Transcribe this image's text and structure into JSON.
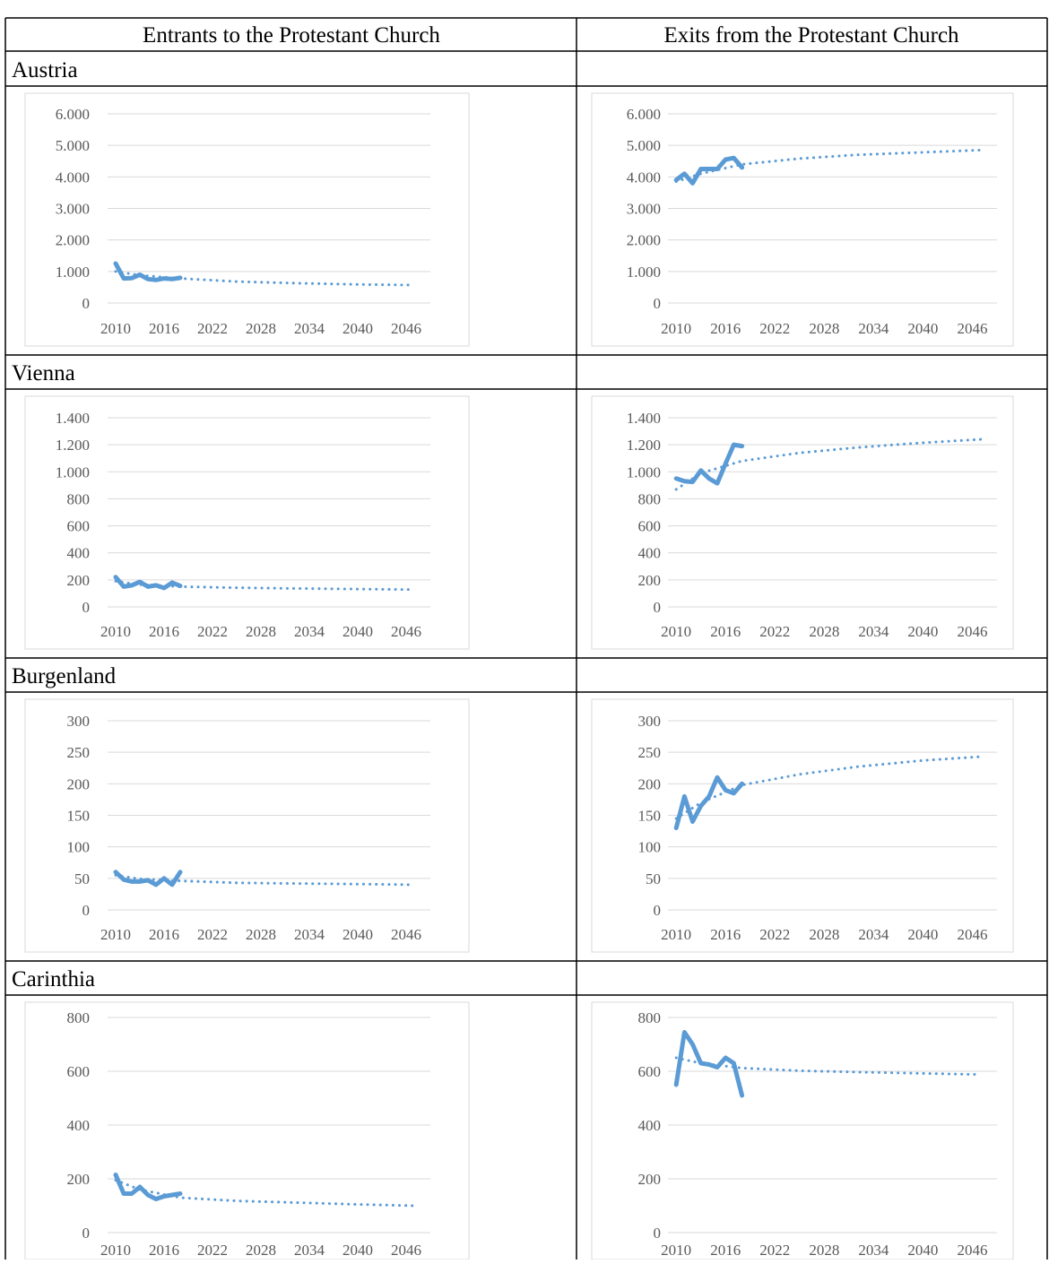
{
  "table": {
    "headers": [
      "Entrants to the Protestant Church",
      "Exits from the Protestant Church"
    ],
    "regions": [
      "Austria",
      "Vienna",
      "Burgenland",
      "Carinthia"
    ]
  },
  "chart_data": [
    {
      "type": "line",
      "xlim": [
        2009,
        2049
      ],
      "xticks": [
        2010,
        2016,
        2022,
        2028,
        2034,
        2040,
        2046
      ],
      "ylim": [
        0,
        6000
      ],
      "yticks": [
        0,
        {
          "value": 1000,
          "label": "1.000"
        },
        {
          "value": 2000,
          "label": "2.000"
        },
        {
          "value": 3000,
          "label": "3.000"
        },
        {
          "value": 4000,
          "label": "4.000"
        },
        {
          "value": 5000,
          "label": "5.000"
        },
        {
          "value": 6000,
          "label": "6.000"
        }
      ],
      "grid": true,
      "series": [
        {
          "color": "#5b9bd5",
          "style": "solid",
          "x": [
            2010,
            2011,
            2012,
            2013,
            2014,
            2015,
            2016,
            2017,
            2018
          ],
          "values": [
            1250,
            780,
            790,
            900,
            760,
            730,
            780,
            760,
            800
          ]
        },
        {
          "color": "#5b9bd5",
          "style": "dotted",
          "x": [
            2010,
            2013,
            2018,
            2025,
            2032,
            2040,
            2047
          ],
          "values": [
            1000,
            880,
            780,
            680,
            630,
            590,
            570
          ]
        }
      ]
    },
    {
      "type": "line",
      "xlim": [
        2009,
        2049
      ],
      "xticks": [
        2010,
        2016,
        2022,
        2028,
        2034,
        2040,
        2046
      ],
      "ylim": [
        0,
        6000
      ],
      "yticks": [
        0,
        {
          "value": 1000,
          "label": "1.000"
        },
        {
          "value": 2000,
          "label": "2.000"
        },
        {
          "value": 3000,
          "label": "3.000"
        },
        {
          "value": 4000,
          "label": "4.000"
        },
        {
          "value": 5000,
          "label": "5.000"
        },
        {
          "value": 6000,
          "label": "6.000"
        }
      ],
      "grid": true,
      "series": [
        {
          "color": "#5b9bd5",
          "style": "solid",
          "x": [
            2010,
            2011,
            2012,
            2013,
            2014,
            2015,
            2016,
            2017,
            2018
          ],
          "values": [
            3900,
            4100,
            3800,
            4250,
            4250,
            4250,
            4550,
            4600,
            4300
          ]
        },
        {
          "color": "#5b9bd5",
          "style": "dotted",
          "x": [
            2010,
            2013,
            2018,
            2025,
            2032,
            2040,
            2047
          ],
          "values": [
            3850,
            4100,
            4400,
            4580,
            4700,
            4780,
            4850
          ]
        }
      ]
    },
    {
      "type": "line",
      "xlim": [
        2009,
        2049
      ],
      "xticks": [
        2010,
        2016,
        2022,
        2028,
        2034,
        2040,
        2046
      ],
      "ylim": [
        0,
        1400
      ],
      "yticks": [
        0,
        200,
        400,
        600,
        800,
        {
          "value": 1000,
          "label": "1.000"
        },
        {
          "value": 1200,
          "label": "1.200"
        },
        {
          "value": 1400,
          "label": "1.400"
        }
      ],
      "grid": true,
      "series": [
        {
          "color": "#5b9bd5",
          "style": "solid",
          "x": [
            2010,
            2011,
            2012,
            2013,
            2014,
            2015,
            2016,
            2017,
            2018
          ],
          "values": [
            220,
            150,
            160,
            185,
            150,
            160,
            140,
            180,
            155
          ]
        },
        {
          "color": "#5b9bd5",
          "style": "dotted",
          "x": [
            2010,
            2013,
            2018,
            2025,
            2032,
            2040,
            2047
          ],
          "values": [
            190,
            165,
            150,
            142,
            137,
            132,
            128
          ]
        }
      ]
    },
    {
      "type": "line",
      "xlim": [
        2009,
        2049
      ],
      "xticks": [
        2010,
        2016,
        2022,
        2028,
        2034,
        2040,
        2046
      ],
      "ylim": [
        0,
        1400
      ],
      "yticks": [
        0,
        200,
        400,
        600,
        800,
        {
          "value": 1000,
          "label": "1.000"
        },
        {
          "value": 1200,
          "label": "1.200"
        },
        {
          "value": 1400,
          "label": "1.400"
        }
      ],
      "grid": true,
      "series": [
        {
          "color": "#5b9bd5",
          "style": "solid",
          "x": [
            2010,
            2011,
            2012,
            2013,
            2014,
            2015,
            2016,
            2017,
            2018
          ],
          "values": [
            950,
            930,
            925,
            1010,
            950,
            915,
            1060,
            1200,
            1190
          ]
        },
        {
          "color": "#5b9bd5",
          "style": "dotted",
          "x": [
            2010,
            2013,
            2018,
            2025,
            2032,
            2040,
            2047
          ],
          "values": [
            870,
            990,
            1080,
            1140,
            1180,
            1215,
            1240
          ]
        }
      ]
    },
    {
      "type": "line",
      "xlim": [
        2009,
        2049
      ],
      "xticks": [
        2010,
        2016,
        2022,
        2028,
        2034,
        2040,
        2046
      ],
      "ylim": [
        0,
        300
      ],
      "yticks": [
        0,
        50,
        100,
        150,
        200,
        250,
        300
      ],
      "grid": true,
      "series": [
        {
          "color": "#5b9bd5",
          "style": "solid",
          "x": [
            2010,
            2011,
            2012,
            2013,
            2014,
            2015,
            2016,
            2017,
            2018
          ],
          "values": [
            60,
            48,
            45,
            45,
            47,
            40,
            50,
            40,
            60
          ]
        },
        {
          "color": "#5b9bd5",
          "style": "dotted",
          "x": [
            2010,
            2013,
            2018,
            2025,
            2032,
            2040,
            2047
          ],
          "values": [
            55,
            49,
            46,
            43,
            42,
            41,
            40
          ]
        }
      ]
    },
    {
      "type": "line",
      "xlim": [
        2009,
        2049
      ],
      "xticks": [
        2010,
        2016,
        2022,
        2028,
        2034,
        2040,
        2046
      ],
      "ylim": [
        0,
        300
      ],
      "yticks": [
        0,
        50,
        100,
        150,
        200,
        250,
        300
      ],
      "grid": true,
      "series": [
        {
          "color": "#5b9bd5",
          "style": "solid",
          "x": [
            2010,
            2011,
            2012,
            2013,
            2014,
            2015,
            2016,
            2017,
            2018
          ],
          "values": [
            130,
            180,
            140,
            165,
            180,
            210,
            190,
            185,
            200
          ]
        },
        {
          "color": "#5b9bd5",
          "style": "dotted",
          "x": [
            2010,
            2013,
            2018,
            2025,
            2032,
            2040,
            2047
          ],
          "values": [
            145,
            170,
            198,
            215,
            227,
            237,
            243
          ]
        }
      ]
    },
    {
      "type": "line",
      "xlim": [
        2009,
        2049
      ],
      "xticks": [
        2010,
        2016,
        2022,
        2028,
        2034,
        2040,
        2046
      ],
      "ylim": [
        0,
        800
      ],
      "yticks": [
        0,
        200,
        400,
        600,
        800
      ],
      "grid": true,
      "series": [
        {
          "color": "#5b9bd5",
          "style": "solid",
          "x": [
            2010,
            2011,
            2012,
            2013,
            2014,
            2015,
            2016,
            2017,
            2018
          ],
          "values": [
            215,
            145,
            145,
            170,
            140,
            125,
            135,
            140,
            145
          ]
        },
        {
          "color": "#5b9bd5",
          "style": "dotted",
          "x": [
            2010,
            2013,
            2018,
            2025,
            2032,
            2040,
            2047
          ],
          "values": [
            195,
            160,
            130,
            118,
            112,
            105,
            100
          ]
        }
      ]
    },
    {
      "type": "line",
      "xlim": [
        2009,
        2049
      ],
      "xticks": [
        2010,
        2016,
        2022,
        2028,
        2034,
        2040,
        2046
      ],
      "ylim": [
        0,
        800
      ],
      "yticks": [
        0,
        200,
        400,
        600,
        800
      ],
      "grid": true,
      "series": [
        {
          "color": "#5b9bd5",
          "style": "solid",
          "x": [
            2010,
            2011,
            2012,
            2013,
            2014,
            2015,
            2016,
            2017,
            2018
          ],
          "values": [
            550,
            745,
            700,
            630,
            625,
            615,
            650,
            630,
            510
          ]
        },
        {
          "color": "#5b9bd5",
          "style": "dotted",
          "x": [
            2010,
            2013,
            2018,
            2025,
            2032,
            2040,
            2047
          ],
          "values": [
            650,
            630,
            612,
            602,
            597,
            592,
            588
          ]
        }
      ]
    }
  ]
}
